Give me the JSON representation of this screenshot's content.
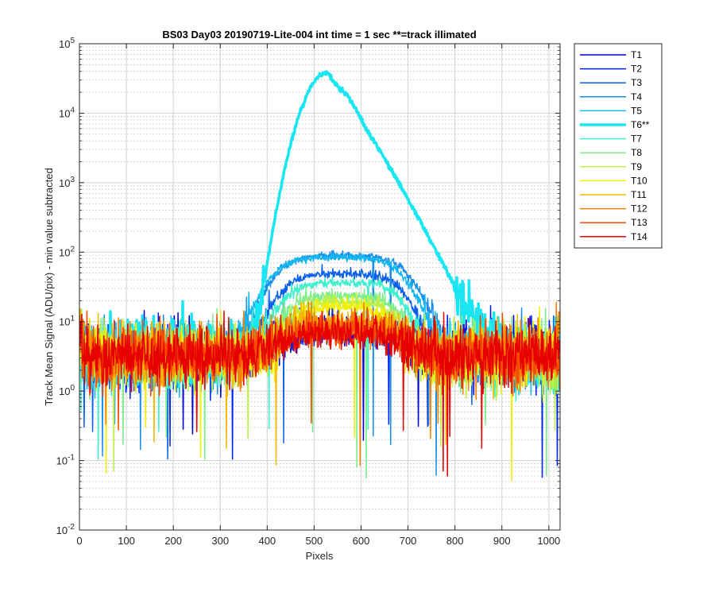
{
  "chart_data": {
    "type": "line",
    "title": "BS03 Day03 20190719-Lite-004 int time = 1 sec    **=track illimated",
    "xlabel": "Pixels",
    "ylabel": "Track Mean Signal (ADU/pix) - min value subtracted",
    "x_scale": "linear",
    "y_scale": "log",
    "xlim": [
      0,
      1024
    ],
    "ylim": [
      0.01,
      100000
    ],
    "x_ticks": [
      0,
      100,
      200,
      300,
      400,
      500,
      600,
      700,
      800,
      900,
      1000
    ],
    "x_tick_labels": [
      "0",
      "100",
      "200",
      "300",
      "400",
      "500",
      "600",
      "700",
      "800",
      "900",
      "1000"
    ],
    "y_tick_labels": [
      {
        "base": "10",
        "exp": "-2"
      },
      {
        "base": "10",
        "exp": "-1"
      },
      {
        "base": "10",
        "exp": "0"
      },
      {
        "base": "10",
        "exp": "1"
      },
      {
        "base": "10",
        "exp": "2"
      },
      {
        "base": "10",
        "exp": "3"
      },
      {
        "base": "10",
        "exp": "4"
      },
      {
        "base": "10",
        "exp": "5"
      }
    ],
    "grid": true,
    "legend_position": "outside-right-top",
    "series": [
      {
        "name": "T1",
        "color": "#0000d0",
        "peak_x": 560,
        "peak": 4,
        "sigma": 120,
        "lw": 1.5,
        "seed": 11
      },
      {
        "name": "T2",
        "color": "#0022ee",
        "peak_x": 560,
        "peak": 4,
        "sigma": 120,
        "lw": 1.5,
        "seed": 12
      },
      {
        "name": "T3",
        "color": "#0a5fe8",
        "peak_x": 560,
        "peak": 45,
        "sigma": 120,
        "lw": 1.5,
        "seed": 13
      },
      {
        "name": "T4",
        "color": "#1a8fe8",
        "peak_x": 560,
        "peak": 85,
        "sigma": 130,
        "lw": 1.5,
        "seed": 14
      },
      {
        "name": "T5",
        "color": "#13b7f0",
        "peak_x": 550,
        "peak": 80,
        "sigma": 130,
        "lw": 1.5,
        "seed": 15
      },
      {
        "name": "T6**",
        "color": "#19e6f0",
        "peak_x": 528,
        "peak": 38000,
        "sigma": 0,
        "lw": 3.5,
        "seed": 16
      },
      {
        "name": "T7",
        "color": "#3ff0cc",
        "peak_x": 560,
        "peak": 33,
        "sigma": 115,
        "lw": 1.5,
        "seed": 17
      },
      {
        "name": "T8",
        "color": "#7cef8c",
        "peak_x": 560,
        "peak": 20,
        "sigma": 110,
        "lw": 1.5,
        "seed": 18
      },
      {
        "name": "T9",
        "color": "#bdf04a",
        "peak_x": 560,
        "peak": 16,
        "sigma": 100,
        "lw": 1.5,
        "seed": 19
      },
      {
        "name": "T10",
        "color": "#f0f000",
        "peak_x": 560,
        "peak": 13,
        "sigma": 90,
        "lw": 1.5,
        "seed": 20
      },
      {
        "name": "T11",
        "color": "#f5b800",
        "peak_x": 560,
        "peak": 6,
        "sigma": 120,
        "lw": 1.5,
        "seed": 21
      },
      {
        "name": "T12",
        "color": "#f58200",
        "peak_x": 560,
        "peak": 5,
        "sigma": 120,
        "lw": 1.5,
        "seed": 22
      },
      {
        "name": "T13",
        "color": "#f54a00",
        "peak_x": 560,
        "peak": 4,
        "sigma": 120,
        "lw": 1.5,
        "seed": 23
      },
      {
        "name": "T14",
        "color": "#e60000",
        "peak_x": 560,
        "peak": 3.5,
        "sigma": 120,
        "lw": 1.5,
        "seed": 24
      }
    ]
  }
}
